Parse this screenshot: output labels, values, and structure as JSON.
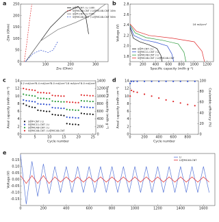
{
  "chart_data": [
    {
      "type": "line",
      "label": "a",
      "xlabel": "Zre (Ohm)",
      "ylabel": "-Zim (Ohm)",
      "xlim": [
        0,
        350
      ],
      "xticks": [
        0,
        100,
        200,
        300
      ],
      "ylim": [
        0,
        250
      ],
      "yticks": [
        0,
        50,
        100,
        150,
        200,
        250
      ],
      "legend": "upper right",
      "series": [
        {
          "name": "S@P-CNT / Li 10th",
          "color": "#111111",
          "dash": false,
          "x": [
            20,
            60,
            120,
            180,
            230,
            260,
            272
          ],
          "values": [
            0,
            60,
            150,
            215,
            240,
            200,
            120
          ]
        },
        {
          "name": "S@MC48-CNT / Li@MC48-CNT 10th",
          "color": "#e0292b",
          "dash": true,
          "x": [
            15,
            25,
            35,
            45
          ],
          "values": [
            0,
            80,
            170,
            250
          ]
        },
        {
          "name": "S@P-CNT / Li 50th",
          "color": "#777777",
          "dash": false,
          "x": [
            20,
            80,
            150,
            220,
            280,
            320,
            340
          ],
          "values": [
            0,
            90,
            140,
            170,
            200,
            235,
            250
          ]
        },
        {
          "name": "S@MC48-CNT / Li@MC48-CNT 50th",
          "color": "#2f4fd0",
          "dash": true,
          "x": [
            20,
            50,
            80,
            110,
            130,
            150
          ],
          "values": [
            0,
            35,
            50,
            40,
            50,
            90
          ]
        }
      ]
    },
    {
      "type": "line",
      "label": "b",
      "xlabel": "Specific capacity (mAh g⁻¹)",
      "ylabel": "Voltage (V)",
      "xlim": [
        0,
        1300
      ],
      "xticks": [
        0,
        200,
        400,
        600,
        800,
        1000,
        1200
      ],
      "ylim": [
        1.7,
        2.8
      ],
      "yticks": [
        1.8,
        {
          "value": 2,
          "label": "2.0"
        },
        2.2,
        2.4,
        2.6,
        2.8
      ],
      "legend": "lower left",
      "annotations": [
        "16 mA/cm²"
      ],
      "series": [
        {
          "name": "S@P-CNT / Li",
          "color": "#111111",
          "dash": false,
          "x": [
            0,
            50,
            150,
            300,
            420,
            480,
            500
          ],
          "values": [
            2.35,
            2.15,
            2.08,
            2.02,
            1.95,
            1.82,
            1.7
          ]
        },
        {
          "name": "S@MC11-CNT / Li",
          "color": "#2f4fd0",
          "dash": false,
          "x": [
            0,
            60,
            200,
            400,
            580,
            650,
            680
          ],
          "values": [
            2.38,
            2.2,
            2.12,
            2.07,
            2.0,
            1.85,
            1.7
          ]
        },
        {
          "name": "S@MC48-CNT / Li",
          "color": "#2a9a3a",
          "dash": false,
          "x": [
            0,
            80,
            250,
            500,
            750,
            840,
            870
          ],
          "values": [
            2.4,
            2.25,
            2.16,
            2.11,
            2.04,
            1.88,
            1.7
          ]
        },
        {
          "name": "S@MC48-CNT / Li@MC48-CNT",
          "color": "#e0292b",
          "dash": false,
          "x": [
            0,
            100,
            300,
            650,
            1000,
            1120,
            1160
          ],
          "values": [
            2.42,
            2.28,
            2.2,
            2.15,
            2.08,
            1.9,
            1.7
          ]
        }
      ]
    },
    {
      "type": "scatter",
      "label": "c",
      "xlabel": "Cycle number",
      "ylabel": "Areal capacity (mAh cm⁻²)",
      "y2label": "Specific capacity (mAh g⁻¹)",
      "xlim": [
        0,
        26
      ],
      "xticks": [
        0,
        5,
        10,
        15,
        20,
        25
      ],
      "ylim": [
        0,
        14
      ],
      "yticks": [
        0,
        2,
        4,
        6,
        8,
        10,
        12,
        14
      ],
      "y2lim": [
        0,
        1400
      ],
      "y2ticks": [
        0,
        200,
        400,
        600,
        800,
        1000,
        1200,
        1400
      ],
      "legend": "lower left",
      "annotations": [
        "3.2 mA/cm²",
        "6.4 mA/cm²",
        "8.0 mA/cm²",
        "16 mA/cm²",
        "8.0 mA/cm²"
      ],
      "x": [
        1,
        2,
        3,
        4,
        5,
        6,
        7,
        8,
        9,
        10,
        11,
        12,
        13,
        14,
        15,
        16,
        17,
        18,
        19,
        20,
        21,
        22,
        23,
        24,
        25
      ],
      "series": [
        {
          "name": "S@P-CNT / Li",
          "color": "#111111",
          "values": [
            8,
            7.6,
            7.3,
            7.1,
            7,
            6.3,
            6.2,
            6.1,
            6,
            6,
            5.2,
            5.1,
            5,
            5,
            4.9,
            2.8,
            2.7,
            2.6,
            2.6,
            2.5,
            5.5,
            5.4,
            5.3,
            5.3,
            5.2
          ]
        },
        {
          "name": "S@MC11-CNT / Li",
          "color": "#2f4fd0",
          "values": [
            9,
            8.8,
            8.7,
            8.6,
            8.5,
            8,
            7.9,
            7.9,
            7.8,
            7.8,
            7,
            6.9,
            6.9,
            6.8,
            6.8,
            4.5,
            4.4,
            4.4,
            4.3,
            4.3,
            7.2,
            7.1,
            7.1,
            7,
            7
          ]
        },
        {
          "name": "S@MC48-CNT / Li",
          "color": "#2a9a3a",
          "values": [
            10.5,
            10.3,
            10.2,
            10.1,
            10,
            9.5,
            9.4,
            9.4,
            9.3,
            9.3,
            8.7,
            8.6,
            8.6,
            8.5,
            8.5,
            6.5,
            6.4,
            6.4,
            6.3,
            6.3,
            8.8,
            8.7,
            8.7,
            8.6,
            8.6
          ]
        },
        {
          "name": "S@MC48-CNT / Li@MC48-CNT",
          "color": "#e0292b",
          "values": [
            12,
            11.8,
            11.7,
            11.6,
            11.5,
            11,
            10.9,
            10.9,
            10.8,
            10.8,
            10.2,
            10.1,
            10.1,
            10,
            10,
            8.5,
            8.4,
            8.4,
            8.3,
            8.3,
            10.3,
            10.2,
            10.2,
            10.1,
            10.1
          ]
        }
      ]
    },
    {
      "type": "scatter",
      "label": "d",
      "xlabel": "Cycle number",
      "ylabel": "Areal capacity (mAh cm⁻²)",
      "y2label": "Coulombic efficiency (%)",
      "xlim": [
        0,
        950
      ],
      "xticks": [
        0,
        200,
        400,
        600,
        800
      ],
      "ylim": [
        0,
        14
      ],
      "yticks": [
        0,
        2,
        4,
        6,
        8,
        10,
        12,
        14
      ],
      "y2lim": [
        0,
        100
      ],
      "y2ticks": [
        0,
        20,
        40,
        60,
        80,
        100
      ],
      "series": [
        {
          "color": "#e0292b",
          "x": [
            1,
            20,
            50,
            100,
            200,
            300,
            400,
            500,
            600,
            700,
            800,
            900
          ],
          "values": [
            10,
            11.5,
            11.2,
            11,
            10.5,
            10,
            9.5,
            9,
            8.6,
            8.2,
            7.8,
            7.5
          ]
        },
        {
          "color": "#2f4fd0",
          "axis": "y2",
          "x": [
            1,
            20,
            50,
            100,
            200,
            300,
            400,
            500,
            600,
            700,
            800,
            900
          ],
          "values": [
            95,
            99,
            99,
            99,
            99,
            99,
            99,
            99,
            99,
            99,
            99,
            99
          ]
        }
      ]
    },
    {
      "type": "line",
      "label": "e",
      "ylabel": "Voltage (V)",
      "xlim": [
        0,
        1700
      ],
      "xticks": [
        0,
        200,
        400,
        600,
        800,
        1000,
        1200,
        1400,
        1600
      ],
      "ylim": [
        -0.2,
        0.2
      ],
      "yticks": [
        -0.15,
        {
          "value": -0.1,
          "label": "-0.10"
        },
        -0.05,
        {
          "value": 0,
          "label": "0.00"
        },
        0.05,
        {
          "value": 0.1,
          "label": "0.10"
        },
        0.15
      ],
      "legend": "upper right",
      "series": [
        {
          "name": "Li",
          "color": "#5a78d8",
          "dash": false,
          "x": [
            0,
            50,
            100,
            150,
            200,
            250,
            300,
            350,
            400,
            450,
            500,
            550,
            600,
            650,
            700,
            750,
            800,
            850,
            900,
            950,
            1000,
            1050,
            1100,
            1150,
            1200,
            1250,
            1300,
            1350,
            1400,
            1450,
            1500,
            1550,
            1600,
            1650
          ],
          "values": [
            0.19,
            -0.19,
            0.14,
            -0.13,
            0.12,
            -0.11,
            0.1,
            -0.1,
            0.1,
            -0.1,
            0.1,
            -0.1,
            0.1,
            -0.1,
            0.1,
            -0.1,
            0.1,
            -0.1,
            0.1,
            -0.1,
            0.1,
            -0.1,
            0.1,
            -0.1,
            0.1,
            -0.1,
            0.1,
            -0.1,
            0.1,
            -0.1,
            0.1,
            -0.1,
            0.1,
            -0.1
          ]
        },
        {
          "name": "Li@MC48-CNT",
          "color": "#e0292b",
          "dash": false,
          "x": [
            0,
            50,
            100,
            150,
            200,
            250,
            300,
            350,
            400,
            450,
            500,
            550,
            600,
            650,
            700,
            750,
            800,
            850,
            900,
            950,
            1000,
            1050,
            1100,
            1150,
            1200,
            1250,
            1300,
            1350,
            1400,
            1450,
            1500,
            1550,
            1600,
            1650
          ],
          "values": [
            0.03,
            -0.03,
            0.03,
            -0.03,
            0.03,
            -0.03,
            0.02,
            -0.02,
            0.02,
            -0.02,
            0.02,
            -0.02,
            0.02,
            -0.02,
            0.02,
            -0.02,
            0.02,
            -0.02,
            0.02,
            -0.02,
            0.02,
            -0.02,
            0.02,
            -0.02,
            0.02,
            -0.02,
            0.02,
            -0.02,
            0.02,
            -0.02,
            0.02,
            -0.02,
            0.02,
            -0.02
          ]
        }
      ]
    }
  ]
}
